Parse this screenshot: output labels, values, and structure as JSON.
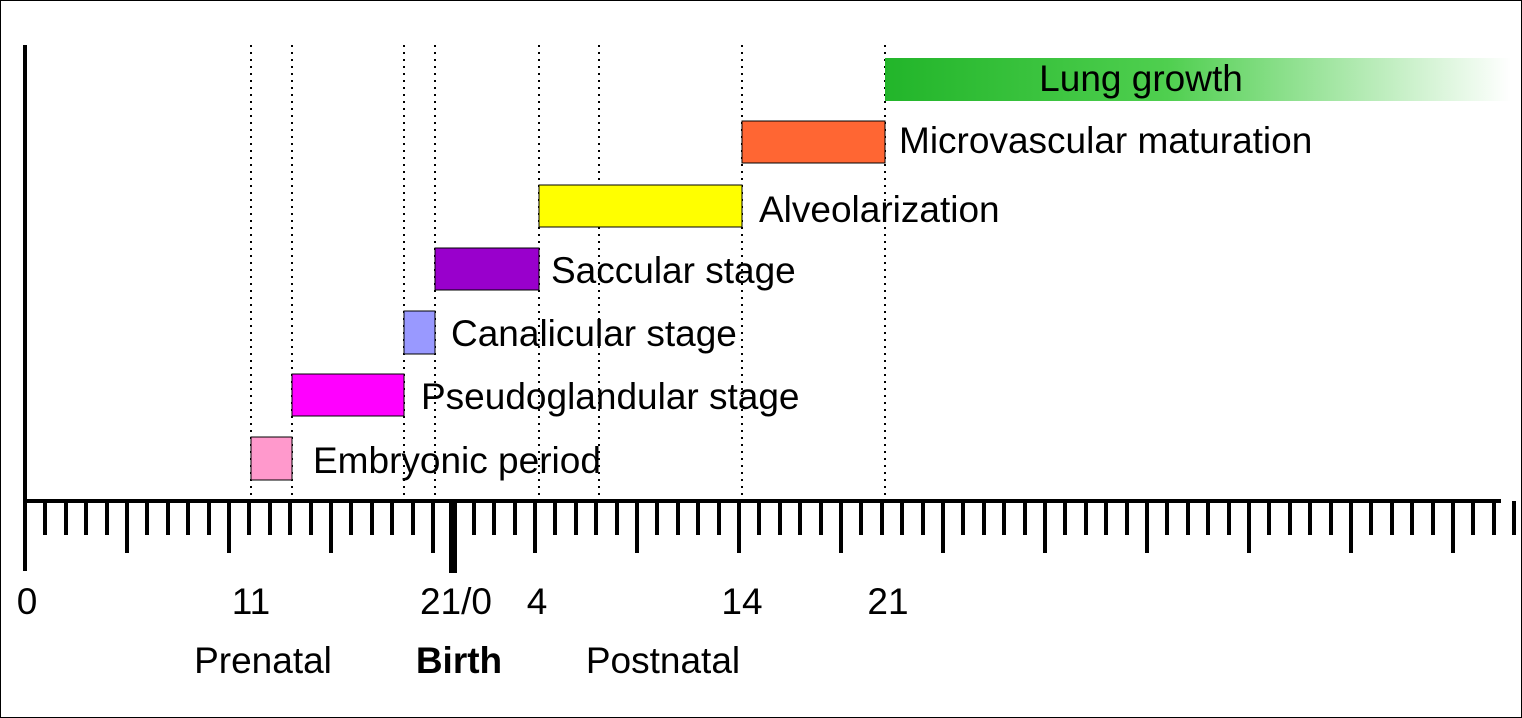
{
  "growth_bar": {
    "label": "Lung growth",
    "color_start": "#22b52a",
    "color_end": "#ffffff"
  },
  "stages": [
    {
      "key": "microvascular",
      "label": "Microvascular maturation",
      "color": "#ff6633"
    },
    {
      "key": "alveolarization",
      "label": "Alveolarization",
      "color": "#ffff00"
    },
    {
      "key": "saccular",
      "label": "Saccular stage",
      "color": "#9900cc"
    },
    {
      "key": "canalicular",
      "label": "Canalicular stage",
      "color": "#9999ff"
    },
    {
      "key": "pseudoglandular",
      "label": "Pseudoglandular stage",
      "color": "#ff00ff"
    },
    {
      "key": "embryonic",
      "label": "Embryonic period",
      "color": "#ff99cc"
    }
  ],
  "axis": {
    "tick_labels": [
      "0",
      "11",
      "21/0",
      "4",
      "14",
      "21"
    ],
    "period_labels": {
      "prenatal": "Prenatal",
      "birth": "Birth",
      "postnatal": "Postnatal"
    }
  }
}
